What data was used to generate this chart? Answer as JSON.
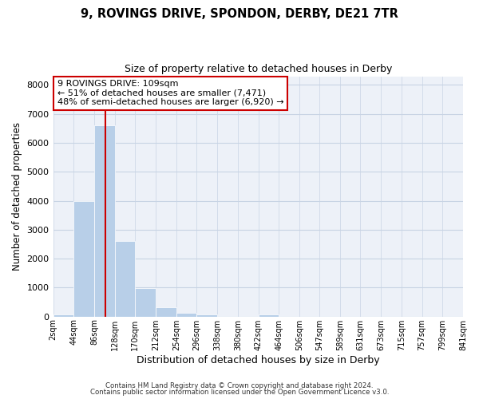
{
  "title1": "9, ROVINGS DRIVE, SPONDON, DERBY, DE21 7TR",
  "title2": "Size of property relative to detached houses in Derby",
  "xlabel": "Distribution of detached houses by size in Derby",
  "ylabel": "Number of detached properties",
  "bar_edges": [
    2,
    44,
    86,
    128,
    170,
    212,
    254,
    296,
    338,
    380,
    422,
    464,
    506,
    547,
    589,
    631,
    673,
    715,
    757,
    799,
    841
  ],
  "bar_heights": [
    60,
    3980,
    6600,
    2620,
    970,
    330,
    120,
    60,
    0,
    0,
    60,
    0,
    0,
    0,
    0,
    0,
    0,
    0,
    0,
    0
  ],
  "bar_color": "#b8cfe8",
  "bar_edgecolor": "white",
  "grid_color": "#c8d4e4",
  "bg_color": "#edf1f8",
  "vline_x": 109,
  "vline_color": "#cc0000",
  "ylim": [
    0,
    8300
  ],
  "yticks": [
    0,
    1000,
    2000,
    3000,
    4000,
    5000,
    6000,
    7000,
    8000
  ],
  "annotation_title": "9 ROVINGS DRIVE: 109sqm",
  "annotation_line1": "← 51% of detached houses are smaller (7,471)",
  "annotation_line2": "48% of semi-detached houses are larger (6,920) →",
  "annotation_box_color": "#cc0000",
  "footer1": "Contains HM Land Registry data © Crown copyright and database right 2024.",
  "footer2": "Contains public sector information licensed under the Open Government Licence v3.0.",
  "tick_labels": [
    "2sqm",
    "44sqm",
    "86sqm",
    "128sqm",
    "170sqm",
    "212sqm",
    "254sqm",
    "296sqm",
    "338sqm",
    "380sqm",
    "422sqm",
    "464sqm",
    "506sqm",
    "547sqm",
    "589sqm",
    "631sqm",
    "673sqm",
    "715sqm",
    "757sqm",
    "799sqm",
    "841sqm"
  ]
}
